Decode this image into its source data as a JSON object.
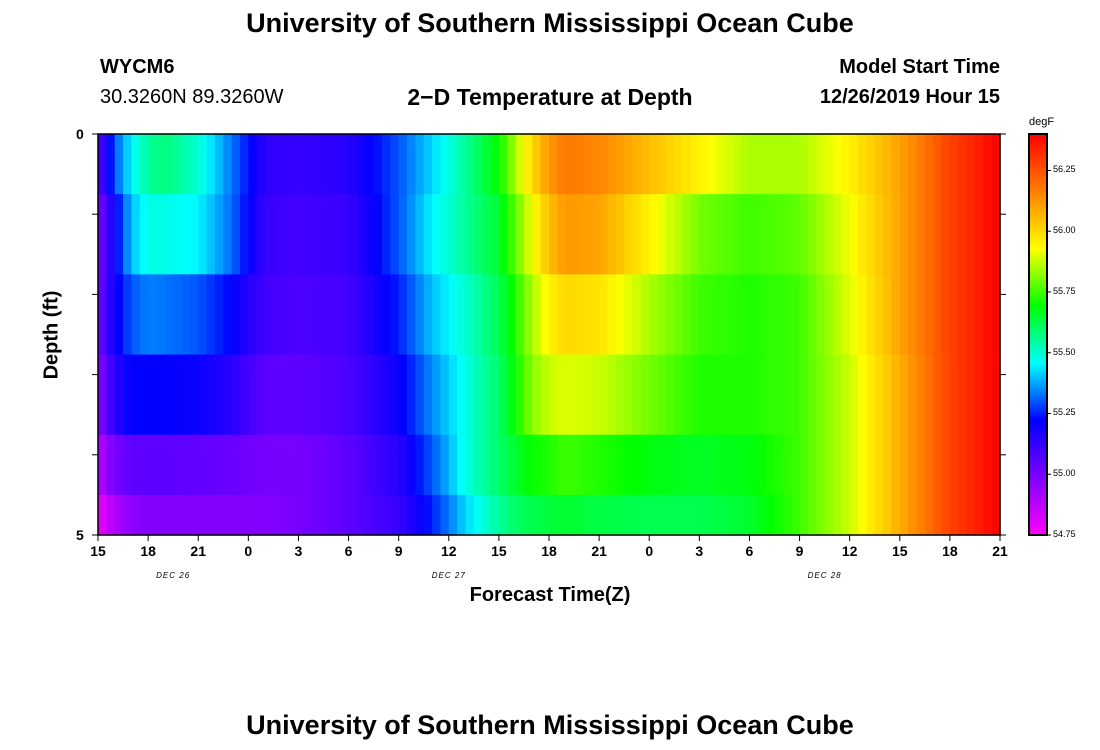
{
  "header": {
    "top_title": "University of Southern Mississippi Ocean Cube",
    "bottom_title": "University of Southern Mississippi Ocean Cube",
    "station": "WYCM6",
    "coords": "30.3260N 89.3260W",
    "plot_title": "2−D Temperature at Depth",
    "model_label": "Model Start Time",
    "model_time": "12/26/2019 Hour 15"
  },
  "chart_data": {
    "type": "heatmap",
    "title": "2−D Temperature at Depth",
    "xlabel": "Forecast Time(Z)",
    "ylabel": "Depth (ft)",
    "ylim": [
      0,
      5
    ],
    "y_tick_labels": [
      "0",
      "5"
    ],
    "x_tick_labels": [
      "15",
      "18",
      "21",
      "0",
      "3",
      "6",
      "9",
      "12",
      "15",
      "18",
      "21",
      "0",
      "3",
      "6",
      "9",
      "12",
      "15",
      "18",
      "21"
    ],
    "date_labels": [
      {
        "text": "DEC 26",
        "at_hour": 4.5
      },
      {
        "text": "DEC 27",
        "at_hour": 21
      },
      {
        "text": "DEC 28",
        "at_hour": 43.5
      }
    ],
    "colorbar": {
      "unit": "degF",
      "min": 54.75,
      "max": 56.4,
      "ticks": [
        "54.75",
        "55.00",
        "55.25",
        "55.50",
        "55.75",
        "56.00",
        "56.25"
      ],
      "colors": [
        "#ff00ff",
        "#8000ff",
        "#0000ff",
        "#00ffff",
        "#00ff00",
        "#ffff00",
        "#ff8000",
        "#ff0000"
      ]
    },
    "depth_rows": [
      {
        "depth": 0.25,
        "x": [
          0,
          1,
          2,
          3,
          4,
          6,
          8,
          10,
          12,
          15,
          18,
          20,
          22,
          24,
          25,
          26,
          27,
          28,
          30,
          33,
          36,
          39,
          42,
          45,
          48,
          51,
          54
        ],
        "values": [
          55.05,
          55.3,
          55.45,
          55.55,
          55.58,
          55.5,
          55.33,
          55.14,
          55.12,
          55.15,
          55.3,
          55.42,
          55.55,
          55.7,
          55.85,
          56.0,
          56.12,
          56.18,
          56.15,
          56.05,
          55.95,
          55.85,
          55.85,
          55.95,
          56.1,
          56.28,
          56.4
        ]
      },
      {
        "depth": 1.25,
        "x": [
          0,
          1,
          2,
          3,
          4,
          6,
          8,
          10,
          12,
          15,
          18,
          20,
          22,
          24,
          25,
          26,
          27,
          28,
          30,
          33,
          36,
          39,
          42,
          45,
          48,
          51,
          54
        ],
        "values": [
          54.98,
          55.2,
          55.4,
          55.48,
          55.48,
          55.45,
          55.32,
          55.12,
          55.1,
          55.12,
          55.3,
          55.45,
          55.55,
          55.65,
          55.78,
          55.92,
          56.05,
          56.12,
          56.1,
          55.95,
          55.8,
          55.75,
          55.78,
          55.92,
          56.1,
          56.28,
          56.4
        ]
      },
      {
        "depth": 2.25,
        "x": [
          0,
          1,
          2,
          3,
          4,
          6,
          8,
          10,
          12,
          15,
          18,
          20,
          22,
          24,
          25,
          26,
          27,
          28,
          30,
          33,
          36,
          39,
          42,
          45,
          48,
          51,
          54
        ],
        "values": [
          55.0,
          55.2,
          55.3,
          55.34,
          55.33,
          55.3,
          55.22,
          55.1,
          55.08,
          55.1,
          55.25,
          55.4,
          55.5,
          55.62,
          55.72,
          55.85,
          55.95,
          56.0,
          55.98,
          55.85,
          55.75,
          55.72,
          55.75,
          55.9,
          56.1,
          56.28,
          56.4
        ]
      },
      {
        "depth": 3.25,
        "x": [
          0,
          1,
          2,
          3,
          4,
          6,
          8,
          10,
          12,
          15,
          18,
          20,
          22,
          24,
          25,
          26,
          27,
          28,
          30,
          33,
          36,
          39,
          42,
          45,
          48,
          51,
          54
        ],
        "values": [
          54.95,
          55.15,
          55.22,
          55.22,
          55.22,
          55.2,
          55.15,
          55.05,
          55.05,
          55.08,
          55.2,
          55.35,
          55.48,
          55.6,
          55.7,
          55.82,
          55.88,
          55.9,
          55.88,
          55.8,
          55.72,
          55.72,
          55.75,
          55.88,
          56.08,
          56.28,
          56.4
        ]
      },
      {
        "depth": 4.25,
        "x": [
          0,
          1,
          2,
          3,
          4,
          6,
          8,
          10,
          12,
          15,
          18,
          20,
          22,
          24,
          25,
          26,
          27,
          28,
          30,
          33,
          36,
          39,
          42,
          45,
          48,
          51,
          54
        ],
        "values": [
          54.88,
          55.0,
          55.05,
          55.05,
          55.05,
          55.04,
          55.03,
          55.0,
          55.0,
          55.05,
          55.15,
          55.3,
          55.48,
          55.6,
          55.65,
          55.7,
          55.72,
          55.75,
          55.72,
          55.68,
          55.66,
          55.68,
          55.75,
          55.88,
          56.08,
          56.28,
          56.4
        ]
      },
      {
        "depth": 4.75,
        "x": [
          0,
          1,
          2,
          3,
          4,
          6,
          8,
          10,
          12,
          15,
          18,
          20,
          22,
          24,
          25,
          26,
          27,
          28,
          30,
          33,
          36,
          39,
          42,
          45,
          48,
          51,
          54
        ],
        "values": [
          54.78,
          54.9,
          54.96,
          54.98,
          54.98,
          54.98,
          54.98,
          54.98,
          55.0,
          55.05,
          55.12,
          55.25,
          55.42,
          55.55,
          55.6,
          55.62,
          55.64,
          55.65,
          55.63,
          55.62,
          55.62,
          55.65,
          55.75,
          55.88,
          56.08,
          56.28,
          56.4
        ]
      }
    ]
  }
}
